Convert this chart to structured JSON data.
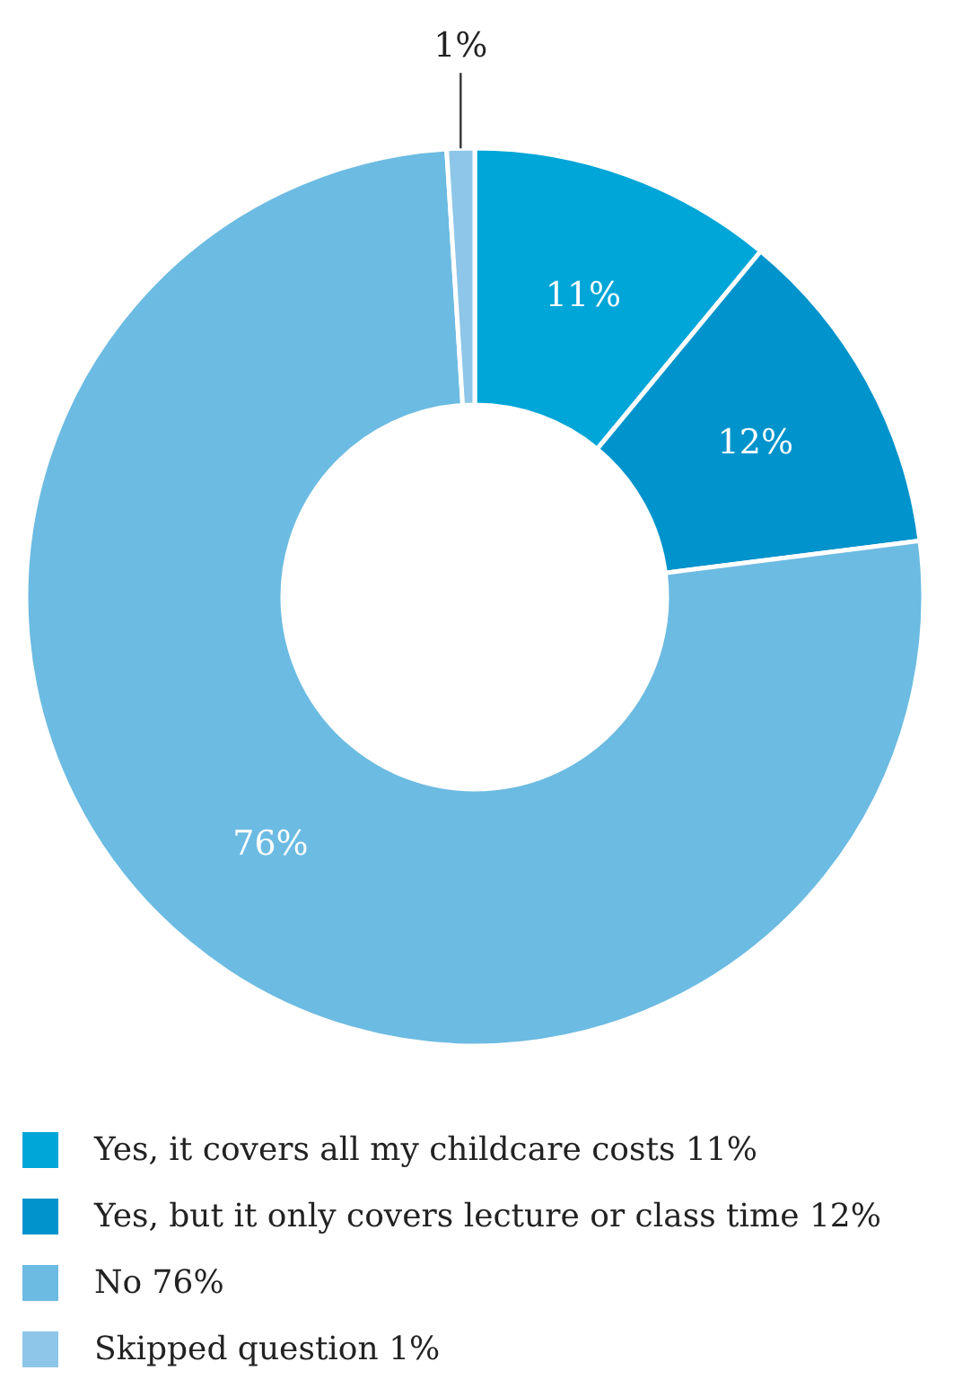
{
  "chart_data": {
    "type": "donut",
    "categories": [
      "Yes, it covers all my childcare costs 11%",
      "Yes, but it only covers lecture or class time 12%",
      "No 76%",
      "Skipped question 1%"
    ],
    "values": [
      11,
      12,
      76,
      1
    ],
    "colors": [
      "#00a6d8",
      "#0093cc",
      "#6cbbe2",
      "#8dc6e8"
    ],
    "value_labels": [
      "11%",
      "12%",
      "76%",
      "1%"
    ],
    "legend": "bottom"
  }
}
